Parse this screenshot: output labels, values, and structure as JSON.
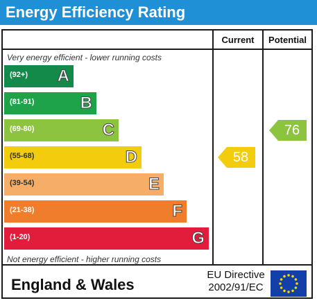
{
  "header": {
    "title": "Energy Efficiency Rating"
  },
  "columns": {
    "current": "Current",
    "potential": "Potential"
  },
  "notes": {
    "top": "Very energy efficient - lower running costs",
    "bottom": "Not energy efficient - higher running costs"
  },
  "footer": {
    "region": "England & Wales",
    "directive_line1": "EU Directive",
    "directive_line2": "2002/91/EC"
  },
  "chart_data": {
    "type": "bar",
    "title": "Energy Efficiency Rating",
    "categories": [
      "A",
      "B",
      "C",
      "D",
      "E",
      "F",
      "G"
    ],
    "bands": [
      {
        "letter": "A",
        "range": "(92+)",
        "color": "#138a4a"
      },
      {
        "letter": "B",
        "range": "(81-91)",
        "color": "#1fa34a"
      },
      {
        "letter": "C",
        "range": "(69-80)",
        "color": "#8cc43f"
      },
      {
        "letter": "D",
        "range": "(55-68)",
        "color": "#f4cc0e"
      },
      {
        "letter": "E",
        "range": "(39-54)",
        "color": "#f5ad67"
      },
      {
        "letter": "F",
        "range": "(21-38)",
        "color": "#ef7d2b"
      },
      {
        "letter": "G",
        "range": "(1-20)",
        "color": "#e21c3b"
      }
    ],
    "current": {
      "value": 58,
      "band": "D",
      "color": "#f4cc0e"
    },
    "potential": {
      "value": 76,
      "band": "C",
      "color": "#8cc43f"
    }
  }
}
